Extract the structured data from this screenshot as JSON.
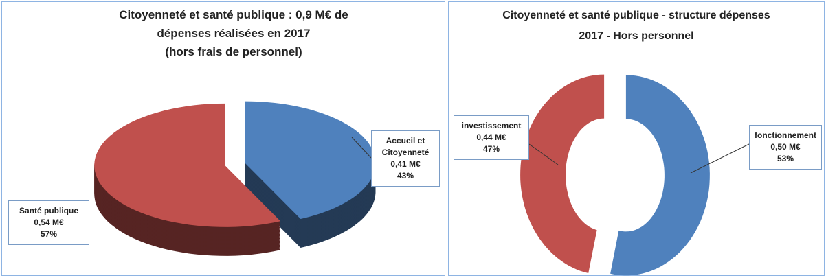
{
  "chart_data": [
    {
      "type": "pie",
      "title": [
        "Citoyenneté et santé publique  : 0,9 M€  de",
        "dépenses réalisées en 2017",
        "(hors frais de personnel)"
      ],
      "categories": [
        "Accueil et Citoyenneté",
        "Santé publique"
      ],
      "values": [
        43,
        57
      ],
      "value_labels": [
        "43%",
        "57%"
      ],
      "amount_labels": [
        "0,41 M€",
        "0,54 M€"
      ],
      "colors": [
        "#4f81bd",
        "#c0504d"
      ]
    },
    {
      "type": "donut",
      "title": [
        "Citoyenneté et santé publique - structure dépenses",
        "2017 - Hors personnel"
      ],
      "categories": [
        "fonctionnement",
        "investissement"
      ],
      "values": [
        53,
        47
      ],
      "value_labels": [
        "53%",
        "47%"
      ],
      "amount_labels": [
        "0,50 M€",
        "0,44 M€"
      ],
      "colors": [
        "#4f81bd",
        "#c0504d"
      ]
    }
  ]
}
